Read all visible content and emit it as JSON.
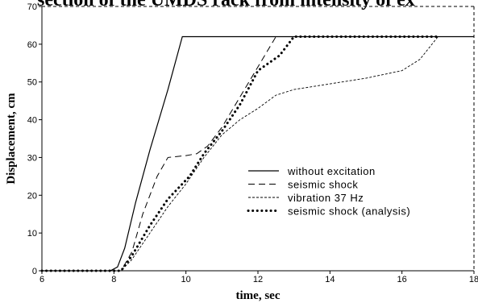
{
  "chart_data": {
    "type": "line",
    "title": "section of the UMDS rack from intensity of ex",
    "xlabel": "time, sec",
    "ylabel": "Displacement, cm",
    "xlim": [
      6,
      18
    ],
    "xticks": [
      6,
      8,
      10,
      12,
      14,
      16,
      18
    ],
    "ylim": [
      0,
      70
    ],
    "yticks": [
      0,
      10,
      20,
      30,
      40,
      50,
      60,
      70
    ],
    "series": [
      {
        "name": "without  excitation",
        "color": "#000000",
        "style": "solid",
        "x": [
          6,
          7.9,
          8.1,
          8.3,
          8.6,
          9.0,
          9.5,
          9.9,
          18
        ],
        "values": [
          0,
          0,
          1,
          6,
          18,
          32,
          48,
          62,
          62
        ]
      },
      {
        "name": "seismic  shock",
        "color": "#000000",
        "style": "dashed",
        "x": [
          6,
          8.2,
          8.5,
          8.8,
          9.2,
          9.5,
          10.0,
          10.3,
          10.6,
          11,
          11.5,
          12,
          12.5,
          18
        ],
        "values": [
          0,
          0,
          5,
          15,
          25,
          30,
          30.5,
          31,
          33,
          38,
          46,
          54,
          62,
          62
        ]
      },
      {
        "name": "vibration  37  Hz",
        "color": "#000000",
        "style": "fine",
        "x": [
          6,
          8.2,
          8.5,
          9,
          9.5,
          10,
          10.5,
          11,
          11.5,
          12,
          12.5,
          13,
          14,
          15,
          16,
          16.5,
          17,
          18
        ],
        "values": [
          0,
          0,
          3,
          10,
          17,
          23,
          30,
          36,
          40,
          43,
          46.5,
          48,
          49.5,
          51,
          53,
          56,
          62,
          62
        ]
      },
      {
        "name": "seismic  shock  (analysis)",
        "color": "#000000",
        "style": "dotted",
        "x": [
          6,
          8.2,
          8.5,
          9,
          9.5,
          9.8,
          10.1,
          10.5,
          11,
          11.5,
          12,
          12.3,
          12.6,
          13,
          17
        ],
        "values": [
          0,
          0,
          4,
          12,
          19,
          22,
          25,
          31,
          37,
          44,
          53,
          55,
          57,
          62,
          62
        ]
      }
    ]
  }
}
